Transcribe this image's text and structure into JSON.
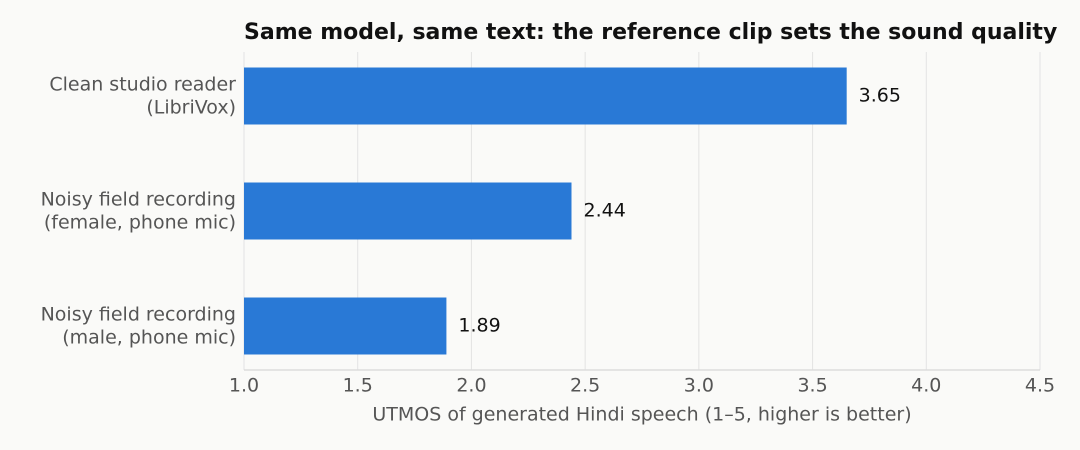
{
  "chart_data": {
    "type": "barh",
    "title": "Same model, same text: the reference clip sets the sound quality",
    "categories": [
      [
        "Clean studio reader",
        "(LibriVox)"
      ],
      [
        "Noisy field recording",
        "(female, phone mic)"
      ],
      [
        "Noisy field recording",
        "(male, phone mic)"
      ]
    ],
    "values": [
      3.65,
      2.44,
      1.89
    ],
    "color": "#2979d6",
    "xlabel": "UTMOS of generated Hindi speech (1–5, higher is better)",
    "xlim": [
      1.0,
      4.5
    ],
    "xticks": [
      {
        "value": 1.0,
        "label": "1.0"
      },
      {
        "value": 1.5,
        "label": "1.5"
      },
      {
        "value": 2.0,
        "label": "2.0"
      },
      {
        "value": 2.5,
        "label": "2.5"
      },
      {
        "value": 3.0,
        "label": "3.0"
      },
      {
        "value": 3.5,
        "label": "3.5"
      },
      {
        "value": 4.0,
        "label": "4.0"
      },
      {
        "value": 4.5,
        "label": "4.5"
      }
    ],
    "grid": true
  }
}
